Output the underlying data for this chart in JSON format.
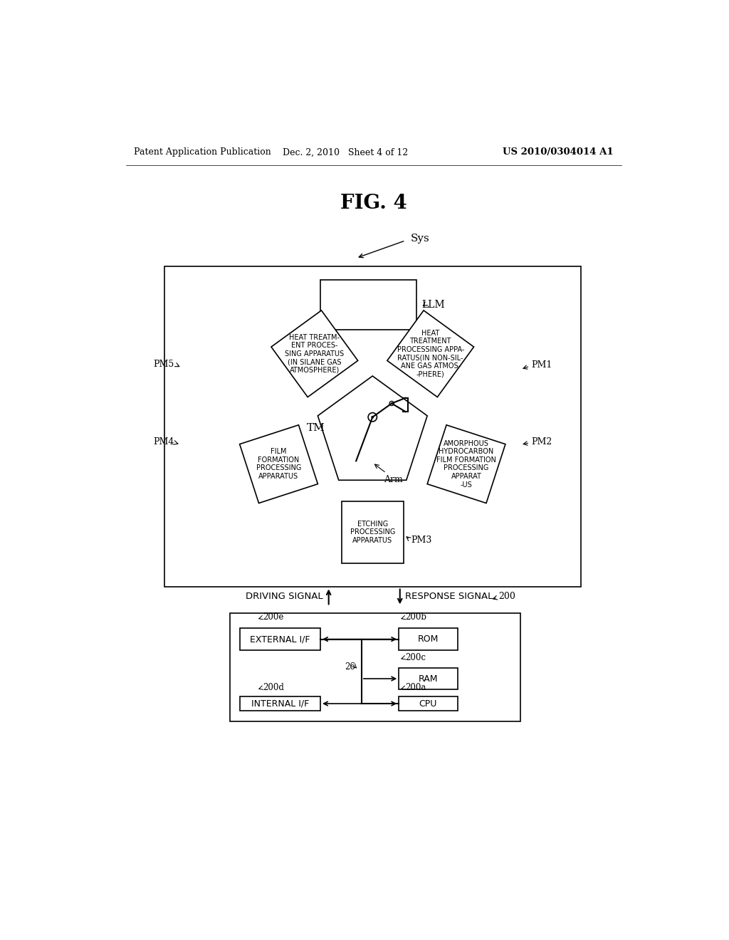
{
  "title": "FIG. 4",
  "header_left": "Patent Application Publication",
  "header_center": "Dec. 2, 2010   Sheet 4 of 12",
  "header_right": "US 2010/0304014 A1",
  "background_color": "#ffffff",
  "line_color": "#000000",
  "fig_width": 10.24,
  "fig_height": 13.2,
  "sys_label": "Sys",
  "llm_label": "LLM",
  "tm_label": "TM",
  "arm_label": "Arm",
  "box_labels": {
    "PM1": "AMORPHOUS\nHYDROCARBON\nFILM FORMATION\nPROCESSING\nAPPARAT\n-US",
    "PM2": "HEAT\nTREATMENT\nPROCESSING APPA-\nRATUS(IN NON-SIL-\nANE GAS ATMOS-\n-PHERE)",
    "PM3": "HEAT TREATM-\nENT PROCES-\nSING APPARATUS\n(IN SILANE GAS\nATMOSPHERE)",
    "PM4": "FILM\nFORMATION\nPROCESSING\nAPPARATUS",
    "PM5": "ETCHING\nPROCESSING\nAPPARATUS"
  },
  "signals": {
    "driving": "DRIVING SIGNAL",
    "response": "RESPONSE SIGNAL"
  }
}
